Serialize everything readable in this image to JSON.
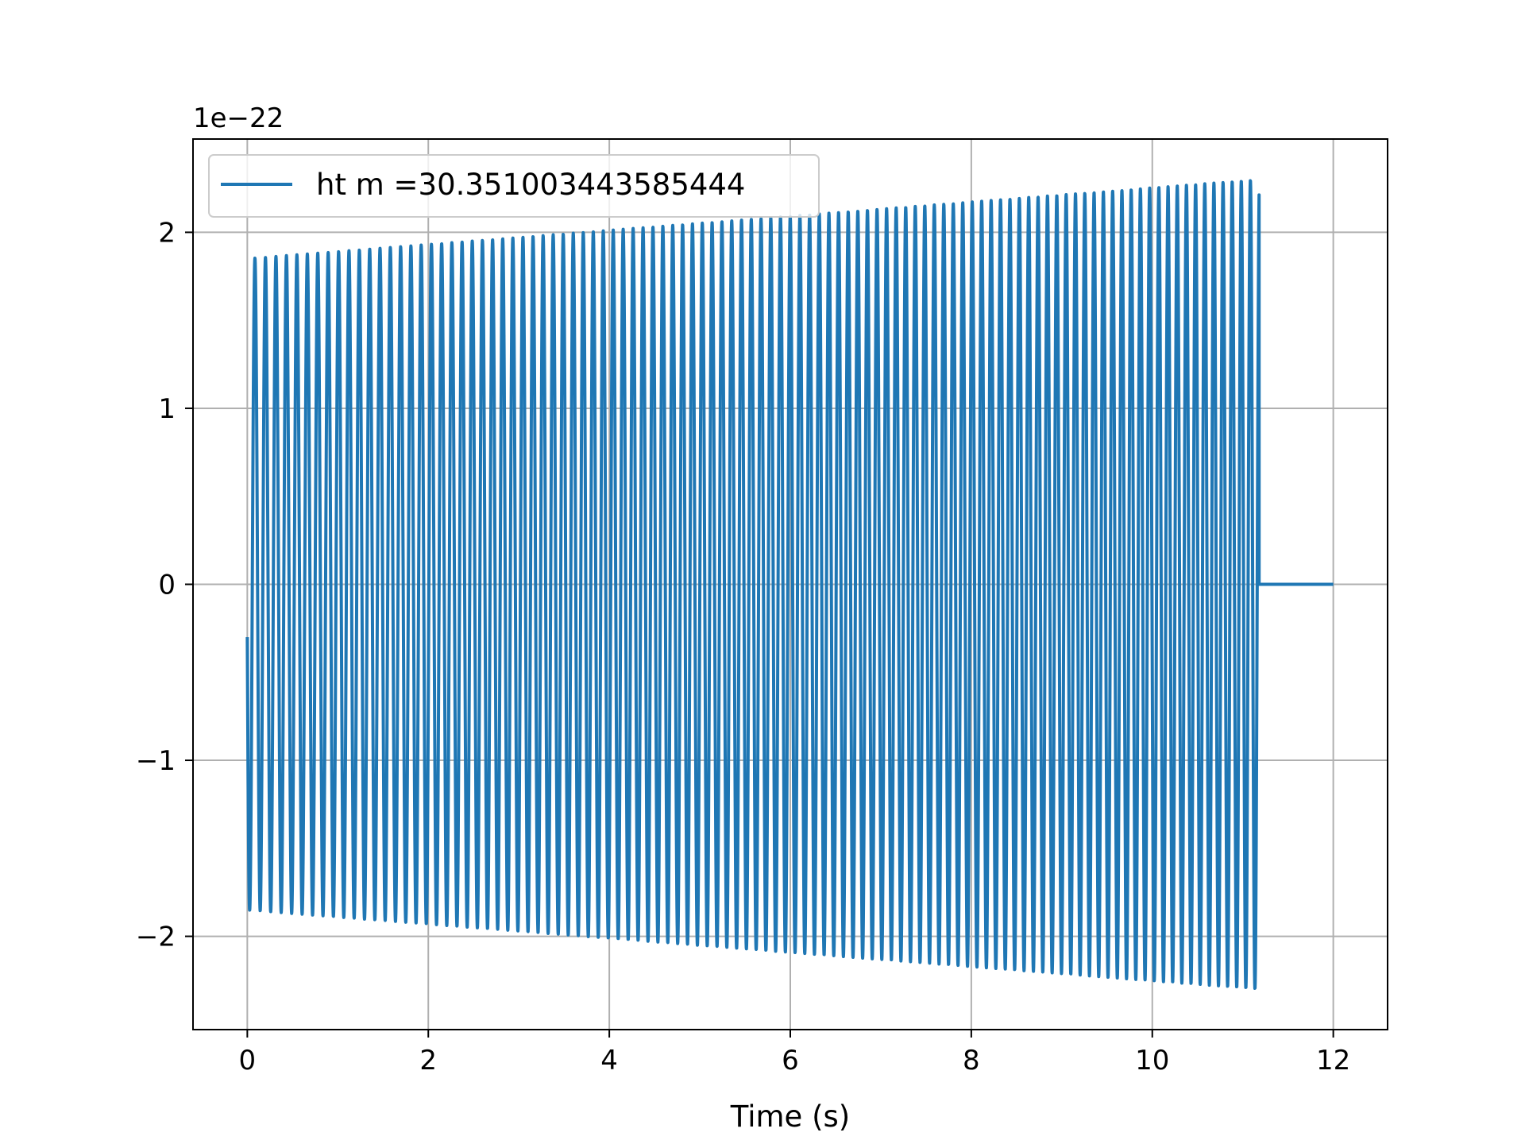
{
  "chart_data": {
    "type": "line",
    "title": "",
    "xlabel": "Time (s)",
    "ylabel": "",
    "y_offset_text": "1e−22",
    "xlim": [
      -0.6,
      12.6
    ],
    "ylim": [
      -2.53,
      2.53
    ],
    "x_ticks": [
      0,
      2,
      4,
      6,
      8,
      10,
      12
    ],
    "x_tick_labels": [
      "0",
      "2",
      "4",
      "6",
      "8",
      "10",
      "12"
    ],
    "y_ticks": [
      -2,
      -1,
      0,
      1,
      2
    ],
    "y_tick_labels": [
      "−2",
      "−1",
      "0",
      "1",
      "2"
    ],
    "grid": true,
    "legend_position": "top-left",
    "series": [
      {
        "name": "ht m =30.351003443585444",
        "color": "#1f77b4",
        "signal": {
          "t_start": 0.0,
          "t_end": 11.18,
          "approx_cycles": 96,
          "amplitude_start": 1.85,
          "amplitude_end": 2.3,
          "value_at_start": -0.3,
          "flat_from": 11.18,
          "flat_to": 12.0,
          "flat_value": 0.0
        }
      }
    ]
  }
}
